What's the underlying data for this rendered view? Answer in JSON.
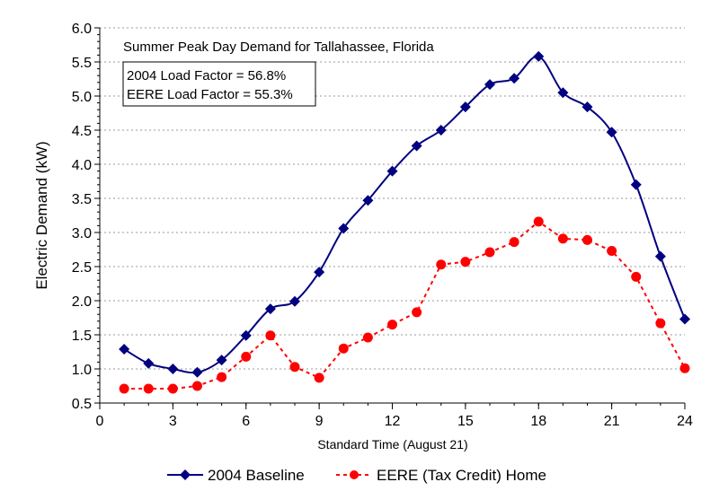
{
  "chart_data": {
    "type": "line",
    "title": "Summer Peak Day Demand for Tallahassee, Florida",
    "annotations": [
      "2004 Load Factor  = 56.8%",
      "EERE Load Factor = 55.3%"
    ],
    "xlabel": "Standard Time (August 21)",
    "ylabel": "Electric Demand (kW)",
    "xlim": [
      0,
      24
    ],
    "ylim": [
      0.5,
      6.0
    ],
    "xticks": [
      "0",
      "3",
      "6",
      "9",
      "12",
      "15",
      "18",
      "21",
      "24"
    ],
    "yticks": [
      "0.5",
      "1.0",
      "1.5",
      "2.0",
      "2.5",
      "3.0",
      "3.5",
      "4.0",
      "4.5",
      "5.0",
      "5.5",
      "6.0"
    ],
    "grid": "horizontal dotted",
    "legend": "bottom",
    "x": [
      1,
      2,
      3,
      4,
      5,
      6,
      7,
      8,
      9,
      10,
      11,
      12,
      13,
      14,
      15,
      16,
      17,
      18,
      19,
      20,
      21,
      22,
      23,
      24
    ],
    "series": [
      {
        "name": "2004 Baseline",
        "color": "#000080",
        "marker": "diamond",
        "line": "solid-smooth",
        "values": [
          1.29,
          1.08,
          1.0,
          0.95,
          1.13,
          1.49,
          1.88,
          1.99,
          2.42,
          3.06,
          3.47,
          3.9,
          4.27,
          4.5,
          4.84,
          5.17,
          5.26,
          5.58,
          5.05,
          4.84,
          4.47,
          3.7,
          2.65,
          1.73
        ]
      },
      {
        "name": "EERE (Tax Credit) Home",
        "color": "#ff0000",
        "marker": "circle",
        "line": "dashed",
        "values": [
          0.71,
          0.71,
          0.71,
          0.75,
          0.88,
          1.18,
          1.49,
          1.03,
          0.87,
          1.3,
          1.46,
          1.65,
          1.83,
          2.53,
          2.57,
          2.71,
          2.86,
          3.16,
          2.91,
          2.89,
          2.73,
          2.35,
          1.67,
          1.01
        ]
      }
    ]
  }
}
